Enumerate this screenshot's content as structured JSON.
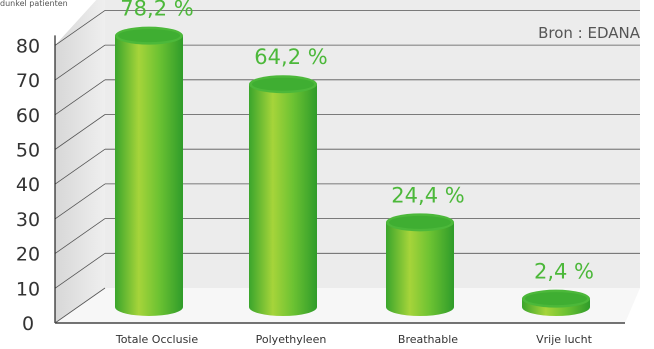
{
  "header_fragment": "dunkel patienten",
  "source": "Bron : EDANA",
  "chart_data": {
    "type": "bar",
    "categories": [
      "Totale Occlusie",
      "Polyethyleen",
      "Breathable",
      "Vrije lucht"
    ],
    "values": [
      78.2,
      64.2,
      24.4,
      2.4
    ],
    "data_labels": [
      "78,2 %",
      "64,2 %",
      "24,4 %",
      "2,4 %"
    ],
    "yticks": [
      "0",
      "10",
      "20",
      "30",
      "40",
      "50",
      "60",
      "70",
      "80"
    ],
    "ylim": [
      0,
      80
    ],
    "title": "",
    "xlabel": "",
    "ylabel": "",
    "grid": true,
    "style": "3d-cylinder",
    "colors": {
      "bar_light": "#a6d43a",
      "bar_mid": "#5fbf33",
      "bar_dark": "#2f9c2a",
      "bar_top": "#4cb83a",
      "label": "#4cb83a",
      "wall": "#ececec",
      "grid": "#555555"
    }
  }
}
